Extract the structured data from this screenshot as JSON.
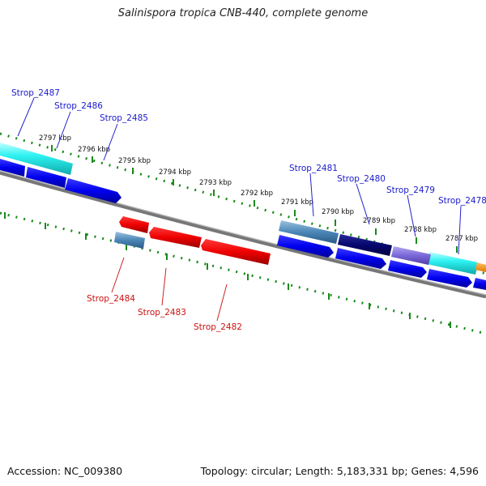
{
  "title": "Salinispora tropica CNB-440, complete genome",
  "accession": "Accession: NC_009380",
  "summary": "Topology: circular; Length: 5,183,331 bp; Genes: 4,596",
  "colors": {
    "backbone": "#777777",
    "ticks": "#1a8a1a",
    "fwd_label": "#1a1acc",
    "rev_label": "#cc1111"
  },
  "kbp_ticks": [
    "2797 kbp",
    "2796 kbp",
    "2795 kbp",
    "2794 kbp",
    "2793 kbp",
    "2792 kbp",
    "2791 kbp",
    "2790 kbp",
    "2789 kbp",
    "2788 kbp",
    "2787 kbp"
  ],
  "forward_labels": [
    "Strop_2487",
    "Strop_2486",
    "Strop_2485",
    "Strop_2481",
    "Strop_2480",
    "Strop_2479",
    "Strop_2478"
  ],
  "reverse_labels": [
    "Strop_2484",
    "Strop_2483",
    "Strop_2482"
  ]
}
